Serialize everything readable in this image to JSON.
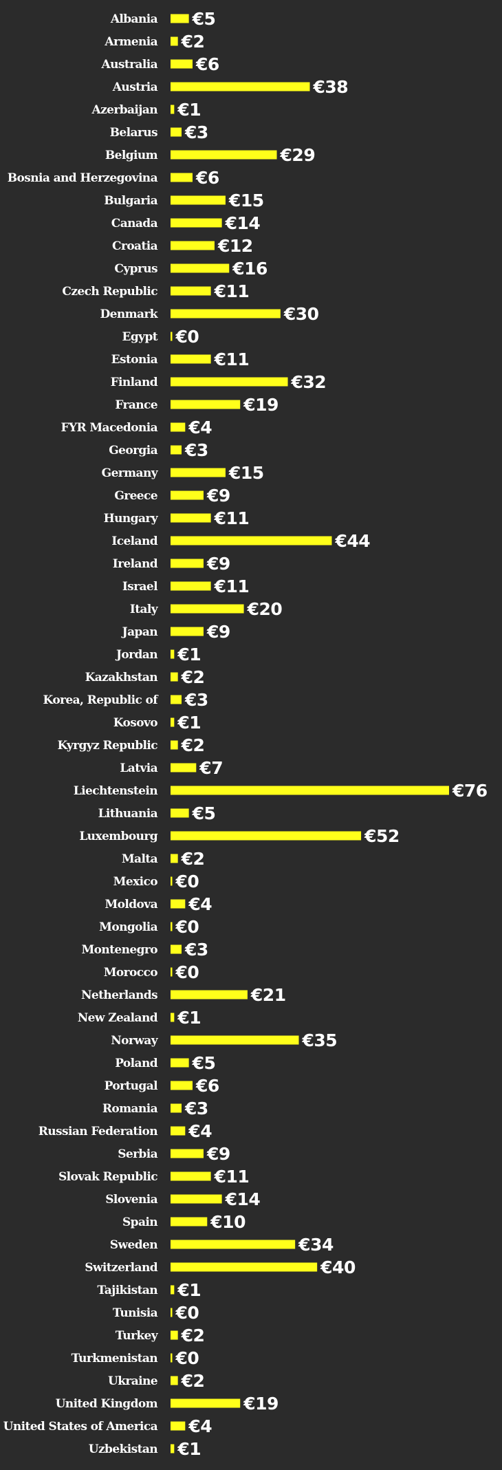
{
  "colors": {
    "background": "#2b2b2b",
    "bar": "#ffff1a",
    "text": "#ffffff"
  },
  "chart_data": {
    "type": "bar",
    "orientation": "horizontal",
    "currency_symbol": "€",
    "categories": [
      "Albania",
      "Armenia",
      "Australia",
      "Austria",
      "Azerbaijan",
      "Belarus",
      "Belgium",
      "Bosnia and Herzegovina",
      "Bulgaria",
      "Canada",
      "Croatia",
      "Cyprus",
      "Czech Republic",
      "Denmark",
      "Egypt",
      "Estonia",
      "Finland",
      "France",
      "FYR Macedonia",
      "Georgia",
      "Germany",
      "Greece",
      "Hungary",
      "Iceland",
      "Ireland",
      "Israel",
      "Italy",
      "Japan",
      "Jordan",
      "Kazakhstan",
      "Korea, Republic of",
      "Kosovo",
      "Kyrgyz Republic",
      "Latvia",
      "Liechtenstein",
      "Lithuania",
      "Luxembourg",
      "Malta",
      "Mexico",
      "Moldova",
      "Mongolia",
      "Montenegro",
      "Morocco",
      "Netherlands",
      "New Zealand",
      "Norway",
      "Poland",
      "Portugal",
      "Romania",
      "Russian Federation",
      "Serbia",
      "Slovak Republic",
      "Slovenia",
      "Spain",
      "Sweden",
      "Switzerland",
      "Tajikistan",
      "Tunisia",
      "Turkey",
      "Turkmenistan",
      "Ukraine",
      "United Kingdom",
      "United States of America",
      "Uzbekistan"
    ],
    "values": [
      5,
      2,
      6,
      38,
      1,
      3,
      29,
      6,
      15,
      14,
      12,
      16,
      11,
      30,
      0,
      11,
      32,
      19,
      4,
      3,
      15,
      9,
      11,
      44,
      9,
      11,
      20,
      9,
      1,
      2,
      3,
      1,
      2,
      7,
      76,
      5,
      52,
      2,
      0,
      4,
      0,
      3,
      0,
      21,
      1,
      35,
      5,
      6,
      3,
      4,
      9,
      11,
      14,
      10,
      34,
      40,
      1,
      0,
      2,
      0,
      2,
      19,
      4,
      1
    ],
    "xlim": [
      0,
      76
    ],
    "grid": false,
    "legend": "none"
  }
}
